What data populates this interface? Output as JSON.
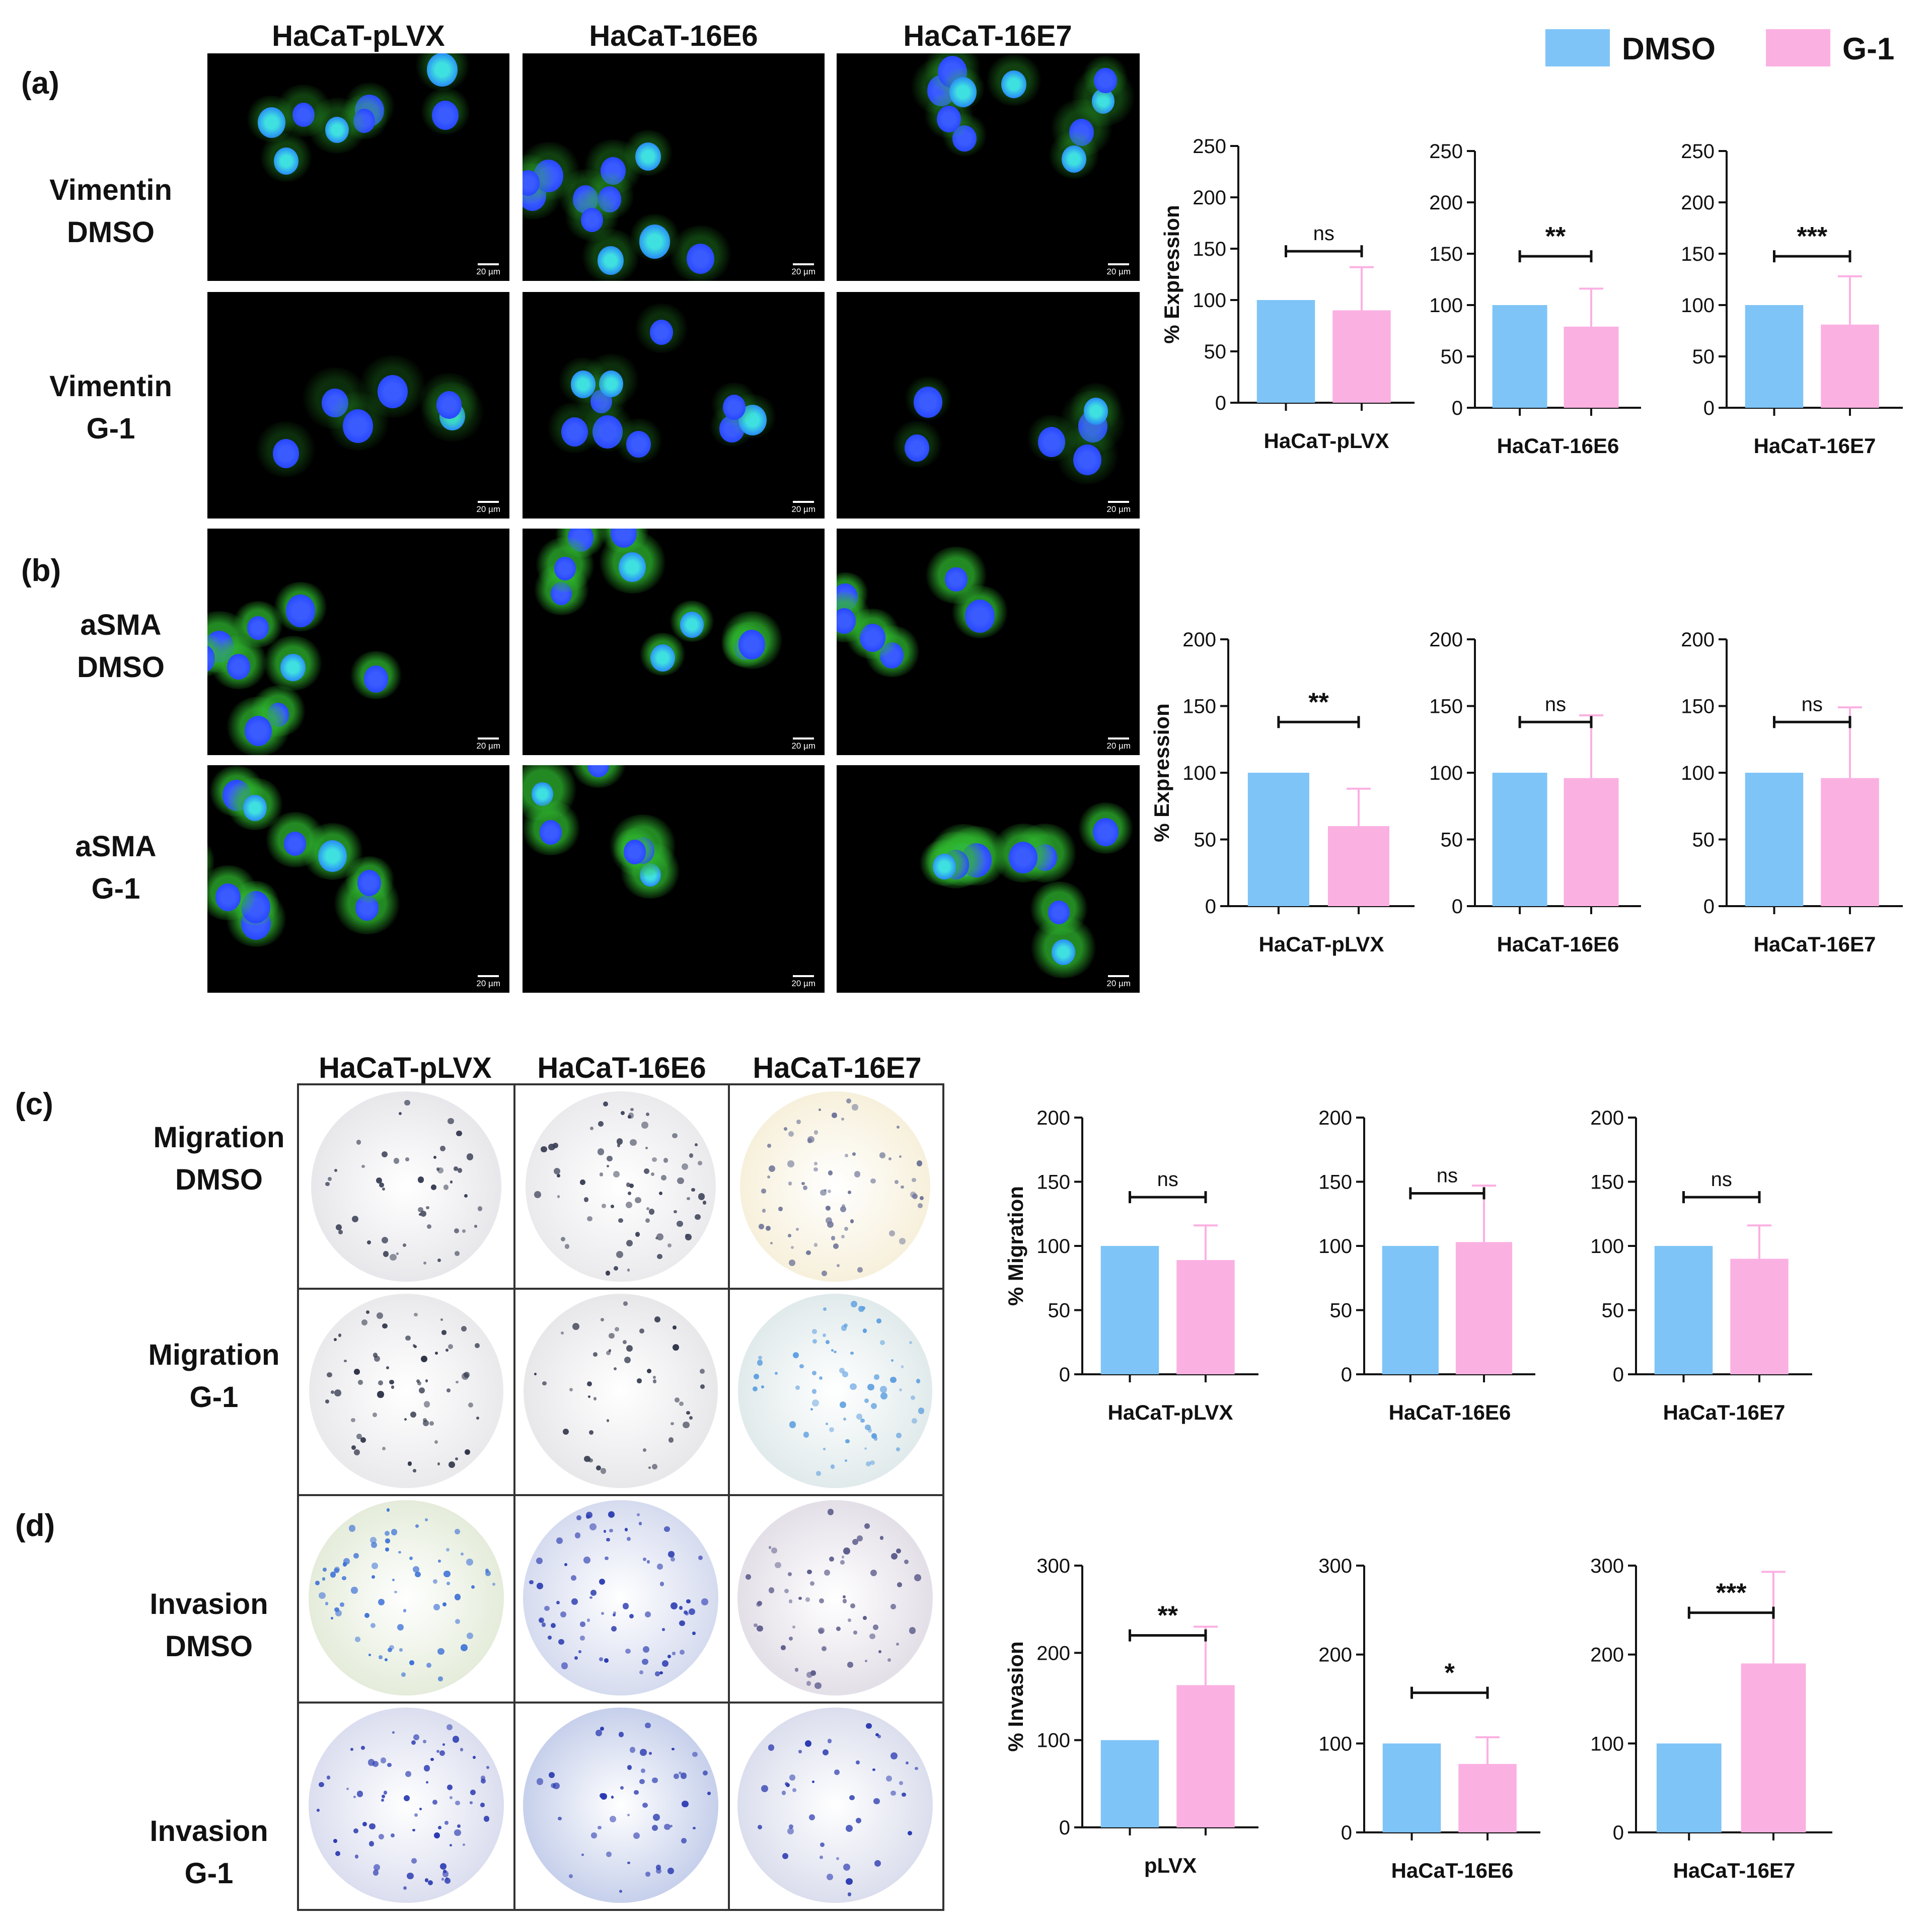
{
  "panels": {
    "a": "(a)",
    "b": "(b)",
    "c": "(c)",
    "d": "(d)"
  },
  "column_headers": [
    "HaCaT-pLVX",
    "HaCaT-16E6",
    "HaCaT-16E7"
  ],
  "row_labels": {
    "vimentin_dmso": [
      "Vimentin",
      "DMSO"
    ],
    "vimentin_g1": [
      "Vimentin",
      "G-1"
    ],
    "asma_dmso": [
      "aSMA",
      "DMSO"
    ],
    "asma_g1": [
      "aSMA",
      "G-1"
    ],
    "migration_dmso": [
      "Migration",
      "DMSO"
    ],
    "migration_g1": [
      "Migration",
      "G-1"
    ],
    "invasion_dmso": [
      "Invasion",
      "DMSO"
    ],
    "invasion_g1": [
      "Invasion",
      "G-1"
    ]
  },
  "scale_bar": "20 µm",
  "legend": [
    {
      "name": "DMSO",
      "color": "#7ec4f7"
    },
    {
      "name": "G-1",
      "color": "#fbb0e2"
    }
  ],
  "colors": {
    "dmso": "#7ec4f7",
    "g1": "#fbb0e2",
    "nuclei": "#1f3dff",
    "cytoplasm": "#2fb82f",
    "stain": "#2a3a8a"
  },
  "chart_data": [
    {
      "id": "a1",
      "type": "bar",
      "categories": [
        "DMSO",
        "G-1"
      ],
      "values": [
        100,
        90
      ],
      "error": [
        0,
        42
      ],
      "xlabel": "HaCaT-pLVX",
      "ylabel": "% Expression",
      "ylim": [
        0,
        250
      ],
      "ticks": [
        0,
        50,
        100,
        150,
        200,
        250
      ],
      "sig": "ns"
    },
    {
      "id": "a2",
      "type": "bar",
      "categories": [
        "DMSO",
        "G-1"
      ],
      "values": [
        100,
        79
      ],
      "error": [
        0,
        37
      ],
      "xlabel": "HaCaT-16E6",
      "ylabel": "",
      "ylim": [
        0,
        250
      ],
      "ticks": [
        0,
        50,
        100,
        150,
        200,
        250
      ],
      "sig": "**"
    },
    {
      "id": "a3",
      "type": "bar",
      "categories": [
        "DMSO",
        "G-1"
      ],
      "values": [
        100,
        81
      ],
      "error": [
        0,
        47
      ],
      "xlabel": "HaCaT-16E7",
      "ylabel": "",
      "ylim": [
        0,
        250
      ],
      "ticks": [
        0,
        50,
        100,
        150,
        200,
        250
      ],
      "sig": "***"
    },
    {
      "id": "b1",
      "type": "bar",
      "categories": [
        "DMSO",
        "G-1"
      ],
      "values": [
        100,
        60
      ],
      "error": [
        0,
        28
      ],
      "xlabel": "HaCaT-pLVX",
      "ylabel": "% Expression",
      "ylim": [
        0,
        200
      ],
      "ticks": [
        0,
        50,
        100,
        150,
        200
      ],
      "sig": "**"
    },
    {
      "id": "b2",
      "type": "bar",
      "categories": [
        "DMSO",
        "G-1"
      ],
      "values": [
        100,
        96
      ],
      "error": [
        0,
        47
      ],
      "xlabel": "HaCaT-16E6",
      "ylabel": "",
      "ylim": [
        0,
        200
      ],
      "ticks": [
        0,
        50,
        100,
        150,
        200
      ],
      "sig": "ns"
    },
    {
      "id": "b3",
      "type": "bar",
      "categories": [
        "DMSO",
        "G-1"
      ],
      "values": [
        100,
        96
      ],
      "error": [
        0,
        53
      ],
      "xlabel": "HaCaT-16E7",
      "ylabel": "",
      "ylim": [
        0,
        200
      ],
      "ticks": [
        0,
        50,
        100,
        150,
        200
      ],
      "sig": "ns"
    },
    {
      "id": "c1",
      "type": "bar",
      "categories": [
        "DMSO",
        "G-1"
      ],
      "values": [
        100,
        89
      ],
      "error": [
        0,
        27
      ],
      "xlabel": "HaCaT-pLVX",
      "ylabel": "% Migration",
      "ylim": [
        0,
        200
      ],
      "ticks": [
        0,
        50,
        100,
        150,
        200
      ],
      "sig": "ns"
    },
    {
      "id": "c2",
      "type": "bar",
      "categories": [
        "DMSO",
        "G-1"
      ],
      "values": [
        100,
        103
      ],
      "error": [
        0,
        44
      ],
      "xlabel": "HaCaT-16E6",
      "ylabel": "",
      "ylim": [
        0,
        200
      ],
      "ticks": [
        0,
        50,
        100,
        150,
        200
      ],
      "sig": "ns"
    },
    {
      "id": "c3",
      "type": "bar",
      "categories": [
        "DMSO",
        "G-1"
      ],
      "values": [
        100,
        90
      ],
      "error": [
        0,
        26
      ],
      "xlabel": "HaCaT-16E7",
      "ylabel": "",
      "ylim": [
        0,
        200
      ],
      "ticks": [
        0,
        50,
        100,
        150,
        200
      ],
      "sig": "ns"
    },
    {
      "id": "d1",
      "type": "bar",
      "categories": [
        "DMSO",
        "G-1"
      ],
      "values": [
        100,
        163
      ],
      "error": [
        0,
        67
      ],
      "xlabel": "pLVX",
      "ylabel": "% Invasion",
      "ylim": [
        0,
        300
      ],
      "ticks": [
        0,
        100,
        200,
        300
      ],
      "sig": "**"
    },
    {
      "id": "d2",
      "type": "bar",
      "categories": [
        "DMSO",
        "G-1"
      ],
      "values": [
        100,
        77
      ],
      "error": [
        0,
        30
      ],
      "xlabel": "HaCaT-16E6",
      "ylabel": "",
      "ylim": [
        0,
        300
      ],
      "ticks": [
        0,
        100,
        200,
        300
      ],
      "sig": "*"
    },
    {
      "id": "d3",
      "type": "bar",
      "categories": [
        "DMSO",
        "G-1"
      ],
      "values": [
        100,
        190
      ],
      "error": [
        0,
        103
      ],
      "xlabel": "HaCaT-16E7",
      "ylabel": "",
      "ylim": [
        0,
        300
      ],
      "ticks": [
        0,
        100,
        200,
        300
      ],
      "sig": "***"
    }
  ]
}
